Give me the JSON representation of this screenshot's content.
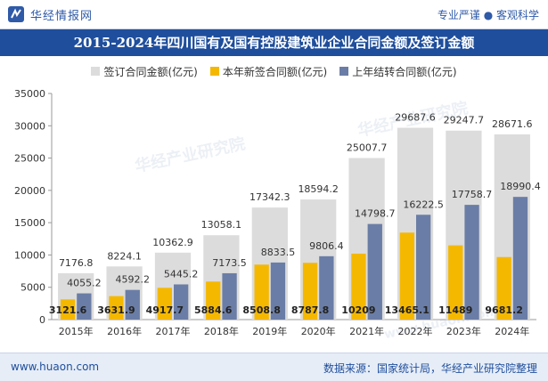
{
  "header": {
    "brand": "华经情报网",
    "tagline": "专业严谨 ● 客观科学"
  },
  "footer": {
    "url": "www.huaon.com",
    "source": "数据来源：国家统计局，华经产业研究院整理"
  },
  "watermarks": [
    "华经产业研究院",
    "www.huaon.com"
  ],
  "colors": {
    "title_band": "#1f4e9c",
    "total": "#dcdcdc",
    "new": "#f5b800",
    "carry": "#6a7da6"
  },
  "chart_data": {
    "type": "bar",
    "title": "2015-2024年四川国有及国有控股建筑业企业合同金额及签订金额",
    "categories": [
      "2015年",
      "2016年",
      "2017年",
      "2018年",
      "2019年",
      "2020年",
      "2021年",
      "2022年",
      "2023年",
      "2024年"
    ],
    "series": [
      {
        "name": "签订合同金额(亿元)",
        "values": [
          7176.8,
          8224.1,
          10362.9,
          13058.1,
          17342.3,
          18594.2,
          25007.7,
          29687.6,
          29247.7,
          28671.6
        ]
      },
      {
        "name": "本年新签合同额(亿元)",
        "values": [
          3121.6,
          3631.9,
          4917.7,
          5884.6,
          8508.8,
          8787.8,
          10209,
          13465.1,
          11489,
          9681.2
        ]
      },
      {
        "name": "上年结转合同额(亿元)",
        "values": [
          4055.2,
          4592.2,
          5445.2,
          7173.5,
          8833.5,
          9806.4,
          14798.7,
          16222.5,
          17758.7,
          18990.4
        ]
      }
    ],
    "value_labels": {
      "total": [
        "7176.8",
        "8224.1",
        "10362.9",
        "13058.1",
        "17342.3",
        "18594.2",
        "25007.7",
        "29687.6",
        "29247.7",
        "28671.6"
      ],
      "new": [
        "3121.6",
        "3631.9",
        "4917.7",
        "5884.6",
        "8508.8",
        "8787.8",
        "10209",
        "13465.1",
        "11489",
        "9681.2"
      ],
      "carry": [
        "4055.2",
        "4592.2",
        "5445.2",
        "7173.5",
        "8833.5",
        "9806.4",
        "14798.7",
        "16222.5",
        "17758.7",
        "18990.4"
      ]
    },
    "ylim": [
      0,
      35000
    ],
    "yticks": [
      0,
      5000,
      10000,
      15000,
      20000,
      25000,
      30000,
      35000
    ],
    "legend_position": "top-center",
    "grid": false
  }
}
